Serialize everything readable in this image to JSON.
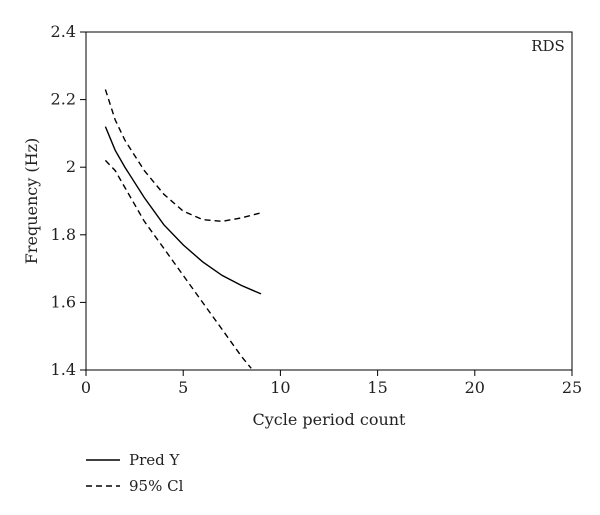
{
  "chart_data": {
    "type": "line",
    "xlabel": "Cycle period count",
    "ylabel": "Frequency (Hz)",
    "xlim": [
      0,
      25
    ],
    "ylim": [
      1.4,
      2.4
    ],
    "x_ticks": [
      0,
      5,
      10,
      15,
      20,
      25
    ],
    "y_ticks": [
      1.4,
      1.6,
      1.8,
      2.0,
      2.2,
      2.4
    ],
    "x_tick_labels": [
      "0",
      "5",
      "10",
      "15",
      "20",
      "25"
    ],
    "y_tick_labels": [
      "1.4",
      "1.6",
      "1.8",
      "2",
      "2.2",
      "2.4"
    ],
    "grid": false,
    "annotation": "RDS",
    "legend_position": "bottom-left",
    "series": [
      {
        "name": "Pred Y",
        "style": "solid",
        "color": "#000000",
        "points": [
          [
            1,
            2.12
          ],
          [
            1.5,
            2.05
          ],
          [
            2,
            2.0
          ],
          [
            3,
            1.91
          ],
          [
            4,
            1.83
          ],
          [
            5,
            1.77
          ],
          [
            6,
            1.72
          ],
          [
            7,
            1.68
          ],
          [
            8,
            1.65
          ],
          [
            9,
            1.625
          ]
        ]
      },
      {
        "name": "95% Cl",
        "style": "dashed",
        "color": "#000000",
        "points": [
          [
            1,
            2.23
          ],
          [
            1.5,
            2.14
          ],
          [
            2,
            2.08
          ],
          [
            3,
            1.99
          ],
          [
            4,
            1.92
          ],
          [
            5,
            1.87
          ],
          [
            6,
            1.845
          ],
          [
            7,
            1.84
          ],
          [
            8,
            1.85
          ],
          [
            9,
            1.865
          ]
        ]
      },
      {
        "name": "95% Cl",
        "style": "dashed",
        "color": "#000000",
        "legend": false,
        "points": [
          [
            1,
            2.02
          ],
          [
            1.5,
            1.99
          ],
          [
            2,
            1.94
          ],
          [
            3,
            1.84
          ],
          [
            4,
            1.76
          ],
          [
            5,
            1.68
          ],
          [
            6,
            1.6
          ],
          [
            7,
            1.52
          ],
          [
            8,
            1.44
          ],
          [
            8.5,
            1.405
          ]
        ]
      }
    ]
  }
}
